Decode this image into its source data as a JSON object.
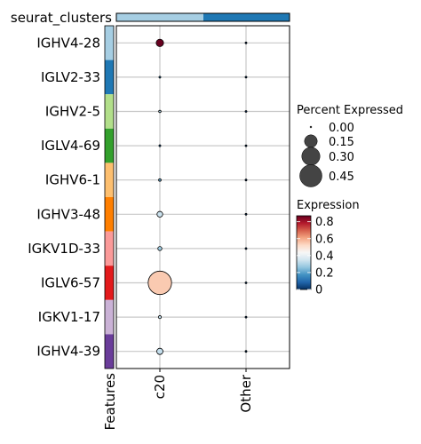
{
  "chart_data": {
    "type": "scatter",
    "title": "",
    "cluster_bar_label": "seurat_clusters",
    "cluster_colors": [
      "#a6cee3",
      "#1f78b4"
    ],
    "categories": [
      "c20",
      "Other"
    ],
    "features": [
      "IGHV4-28",
      "IGLV2-33",
      "IGHV2-5",
      "IGLV4-69",
      "IGHV6-1",
      "IGHV3-48",
      "IGKV1D-33",
      "IGLV6-57",
      "IGKV1-17",
      "IGHV4-39"
    ],
    "feature_colors": [
      "#a6cee3",
      "#1f78b4",
      "#b2df8a",
      "#33a02c",
      "#fdbf6f",
      "#ff7f00",
      "#fb9a99",
      "#e31a1c",
      "#cab2d6",
      "#6a3d9a"
    ],
    "features_axis_label": "Features",
    "series": [
      {
        "category": "c20",
        "percent_expressed": [
          0.05,
          0.003,
          0.005,
          0.003,
          0.006,
          0.03,
          0.015,
          0.5,
          0.008,
          0.035
        ],
        "expression": [
          0.87,
          0.15,
          0.3,
          0.1,
          0.2,
          0.34,
          0.28,
          0.55,
          0.33,
          0.33
        ]
      },
      {
        "category": "Other",
        "percent_expressed": [
          0.001,
          0.001,
          0.001,
          0.001,
          0.001,
          0.001,
          0.001,
          0.001,
          0.001,
          0.001
        ],
        "expression": [
          0.0,
          0.0,
          0.0,
          0.0,
          0.0,
          0.0,
          0.0,
          0.0,
          0.0,
          0.0
        ]
      }
    ],
    "size_legend": {
      "title": "Percent Expressed",
      "breaks": [
        0.0,
        0.15,
        0.3,
        0.45
      ],
      "labels": [
        "0.00",
        "0.15",
        "0.30",
        "0.45"
      ]
    },
    "color_legend": {
      "title": "Expression",
      "range": [
        0,
        0.87
      ],
      "ticks": [
        0,
        0.2,
        0.4,
        0.6,
        0.8
      ],
      "tick_labels": [
        "0",
        "0.2",
        "0.4",
        "0.6",
        "0.8"
      ],
      "colors": [
        "#053061",
        "#2166ac",
        "#4393c3",
        "#92c5de",
        "#d1e5f0",
        "#f7f7f7",
        "#fddbc7",
        "#f4a582",
        "#d6604d",
        "#b2182b",
        "#67001f"
      ]
    },
    "grid": true,
    "legend_position": "right"
  }
}
